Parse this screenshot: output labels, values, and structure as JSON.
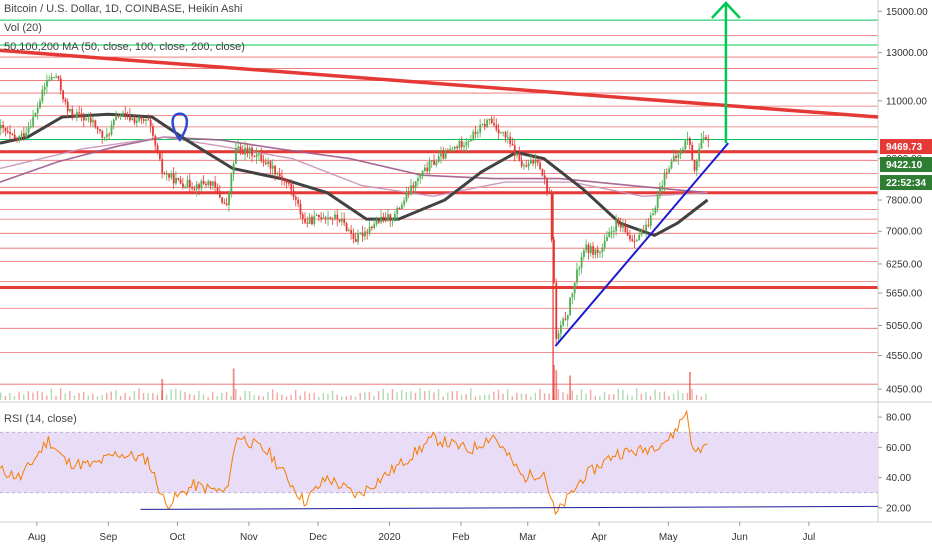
{
  "legend": {
    "title": "Bitcoin / U.S. Dollar, 1D, COINBASE, Heikin Ashi",
    "volume": "Vol (20)",
    "ma": "50,100,200 MA (50, close, 100, close, 200, close)",
    "rsi": "RSI (14, close)"
  },
  "colors": {
    "up": "#4caf50",
    "down": "#e53935",
    "resistance": "#e53935",
    "support_green": "#00c853",
    "trendline": "#1a1ad4",
    "ma50": "#424242",
    "ma200": "#a0588a",
    "rsi_line": "#f57c00",
    "rsi_band": "#e9dcf6",
    "price_badge": "#e53935",
    "last_badge": "#2e7d32",
    "timer_badge": "#2e7d32"
  },
  "chart_data": [
    {
      "type": "candlestick",
      "title": "Bitcoin / U.S. Dollar, 1D, COINBASE, Heikin Ashi",
      "x_ticks": [
        "Aug",
        "Sep",
        "Oct",
        "Nov",
        "Dec",
        "2020",
        "Feb",
        "Mar",
        "Apr",
        "May",
        "Jun",
        "Jul"
      ],
      "x_start": "2019-07-16",
      "x_end": "2020-07-31",
      "y_scale": "log",
      "y_ticks": [
        4050,
        4550,
        5050,
        5650,
        6250,
        7000,
        7800,
        9000,
        11000,
        13000,
        15000
      ],
      "y_tick_labels": [
        "4050.00",
        "4550.00",
        "5050.00",
        "5650.00",
        "6250.00",
        "7000.00",
        "7800.00",
        "9000.00",
        "11000.00",
        "13000.00",
        "15000.00"
      ],
      "ylim": [
        3900,
        15600
      ],
      "price_badges": {
        "current": "9469.73",
        "last": "9422.10",
        "countdown": "22:52:34"
      },
      "price_series": [
        {
          "d": "2019-07-16",
          "c": 10000
        },
        {
          "d": "2019-07-22",
          "c": 9600
        },
        {
          "d": "2019-07-26",
          "c": 9800
        },
        {
          "d": "2019-07-31",
          "c": 10500
        },
        {
          "d": "2019-08-05",
          "c": 11800
        },
        {
          "d": "2019-08-09",
          "c": 12000
        },
        {
          "d": "2019-08-14",
          "c": 10600
        },
        {
          "d": "2019-08-20",
          "c": 10400
        },
        {
          "d": "2019-08-25",
          "c": 10200
        },
        {
          "d": "2019-08-30",
          "c": 9600
        },
        {
          "d": "2019-09-05",
          "c": 10500
        },
        {
          "d": "2019-09-12",
          "c": 10300
        },
        {
          "d": "2019-09-18",
          "c": 10200
        },
        {
          "d": "2019-09-24",
          "c": 8600
        },
        {
          "d": "2019-10-01",
          "c": 8300
        },
        {
          "d": "2019-10-08",
          "c": 8200
        },
        {
          "d": "2019-10-15",
          "c": 8300
        },
        {
          "d": "2019-10-22",
          "c": 7600
        },
        {
          "d": "2019-10-26",
          "c": 9300
        },
        {
          "d": "2019-11-02",
          "c": 9200
        },
        {
          "d": "2019-11-10",
          "c": 8800
        },
        {
          "d": "2019-11-18",
          "c": 8200
        },
        {
          "d": "2019-11-25",
          "c": 7200
        },
        {
          "d": "2019-12-03",
          "c": 7400
        },
        {
          "d": "2019-12-10",
          "c": 7300
        },
        {
          "d": "2019-12-17",
          "c": 6800
        },
        {
          "d": "2019-12-25",
          "c": 7200
        },
        {
          "d": "2020-01-03",
          "c": 7400
        },
        {
          "d": "2020-01-10",
          "c": 8100
        },
        {
          "d": "2020-01-18",
          "c": 8800
        },
        {
          "d": "2020-01-26",
          "c": 9200
        },
        {
          "d": "2020-02-05",
          "c": 9700
        },
        {
          "d": "2020-02-13",
          "c": 10300
        },
        {
          "d": "2020-02-20",
          "c": 9700
        },
        {
          "d": "2020-02-28",
          "c": 8700
        },
        {
          "d": "2020-03-05",
          "c": 9000
        },
        {
          "d": "2020-03-10",
          "c": 7900
        },
        {
          "d": "2020-03-13",
          "c": 4800
        },
        {
          "d": "2020-03-18",
          "c": 5300
        },
        {
          "d": "2020-03-25",
          "c": 6600
        },
        {
          "d": "2020-04-01",
          "c": 6500
        },
        {
          "d": "2020-04-08",
          "c": 7200
        },
        {
          "d": "2020-04-15",
          "c": 6800
        },
        {
          "d": "2020-04-22",
          "c": 7100
        },
        {
          "d": "2020-04-30",
          "c": 8700
        },
        {
          "d": "2020-05-06",
          "c": 9200
        },
        {
          "d": "2020-05-09",
          "c": 9700
        },
        {
          "d": "2020-05-12",
          "c": 8700
        },
        {
          "d": "2020-05-15",
          "c": 9600
        },
        {
          "d": "2020-05-18",
          "c": 9500
        }
      ],
      "ma50": [
        {
          "d": "2019-07-16",
          "c": 9500
        },
        {
          "d": "2019-07-28",
          "c": 9700
        },
        {
          "d": "2019-08-12",
          "c": 10400
        },
        {
          "d": "2019-09-01",
          "c": 10500
        },
        {
          "d": "2019-09-20",
          "c": 10400
        },
        {
          "d": "2019-10-05",
          "c": 9600
        },
        {
          "d": "2019-10-25",
          "c": 8700
        },
        {
          "d": "2019-11-15",
          "c": 8400
        },
        {
          "d": "2019-12-05",
          "c": 8000
        },
        {
          "d": "2019-12-22",
          "c": 7300
        },
        {
          "d": "2020-01-05",
          "c": 7300
        },
        {
          "d": "2020-01-25",
          "c": 7800
        },
        {
          "d": "2020-02-10",
          "c": 8600
        },
        {
          "d": "2020-02-25",
          "c": 9200
        },
        {
          "d": "2020-03-08",
          "c": 9000
        },
        {
          "d": "2020-03-25",
          "c": 8100
        },
        {
          "d": "2020-04-10",
          "c": 7200
        },
        {
          "d": "2020-04-25",
          "c": 6900
        },
        {
          "d": "2020-05-05",
          "c": 7200
        },
        {
          "d": "2020-05-18",
          "c": 7800
        }
      ],
      "ma200": [
        {
          "d": "2019-07-16",
          "c": 8300
        },
        {
          "d": "2019-08-10",
          "c": 8900
        },
        {
          "d": "2019-09-05",
          "c": 9400
        },
        {
          "d": "2019-09-25",
          "c": 9700
        },
        {
          "d": "2019-10-20",
          "c": 9600
        },
        {
          "d": "2019-11-15",
          "c": 9300
        },
        {
          "d": "2019-12-15",
          "c": 9000
        },
        {
          "d": "2020-01-15",
          "c": 8500
        },
        {
          "d": "2020-02-15",
          "c": 8400
        },
        {
          "d": "2020-03-15",
          "c": 8400
        },
        {
          "d": "2020-04-15",
          "c": 8200
        },
        {
          "d": "2020-05-18",
          "c": 8000
        }
      ],
      "ma100": [
        {
          "d": "2019-07-16",
          "c": 8700
        },
        {
          "d": "2019-08-20",
          "c": 9300
        },
        {
          "d": "2019-09-25",
          "c": 9700
        },
        {
          "d": "2019-10-20",
          "c": 9400
        },
        {
          "d": "2019-11-20",
          "c": 9000
        },
        {
          "d": "2019-12-20",
          "c": 8200
        },
        {
          "d": "2020-01-20",
          "c": 7900
        },
        {
          "d": "2020-02-20",
          "c": 8300
        },
        {
          "d": "2020-03-20",
          "c": 8300
        },
        {
          "d": "2020-04-20",
          "c": 7900
        },
        {
          "d": "2020-05-18",
          "c": 8000
        }
      ],
      "horizontal_levels_thin_red": [
        4120,
        4600,
        5000,
        5360,
        5880,
        6300,
        6600,
        6950,
        7300,
        7550,
        8150,
        8550,
        8950,
        9250,
        10050,
        10450,
        10800,
        11300,
        11800,
        12300,
        12800,
        13800
      ],
      "horizontal_levels_thick_red": [
        5760,
        8000,
        9220
      ],
      "horizontal_levels_green": [
        9620,
        13350,
        14550
      ],
      "descending_resistance": [
        {
          "d": "2019-07-16",
          "c": 13100
        },
        {
          "d": "2020-07-31",
          "c": 10400
        }
      ],
      "ascending_trendline": [
        {
          "d": "2020-03-13",
          "c": 4700
        },
        {
          "d": "2020-05-27",
          "c": 9500
        }
      ],
      "arrow_target": {
        "d": "2020-05-26",
        "from": 9500,
        "to": 15600
      }
    },
    {
      "type": "bar",
      "title": "Vol (20)",
      "x_ticks": [
        "Aug",
        "Sep",
        "Oct",
        "Nov",
        "Dec",
        "2020",
        "Feb",
        "Mar",
        "Apr",
        "May",
        "Jun",
        "Jul"
      ],
      "spikes": [
        {
          "d": "2019-10-25",
          "v": 0.9
        },
        {
          "d": "2019-09-24",
          "v": 0.6
        },
        {
          "d": "2020-03-12",
          "v": 1.0
        },
        {
          "d": "2020-03-13",
          "v": 0.85
        },
        {
          "d": "2020-03-19",
          "v": 0.7
        },
        {
          "d": "2020-05-10",
          "v": 0.8
        }
      ]
    },
    {
      "type": "line",
      "title": "RSI (14, close)",
      "y_ticks": [
        20,
        40,
        60,
        80
      ],
      "y_tick_labels": [
        "20.00",
        "40.00",
        "60.00",
        "80.00"
      ],
      "ylim": [
        12,
        88
      ],
      "band": [
        30,
        70
      ],
      "values": [
        {
          "d": "2019-07-16",
          "v": 45
        },
        {
          "d": "2019-07-25",
          "v": 40
        },
        {
          "d": "2019-08-06",
          "v": 65
        },
        {
          "d": "2019-08-14",
          "v": 50
        },
        {
          "d": "2019-08-25",
          "v": 48
        },
        {
          "d": "2019-09-05",
          "v": 56
        },
        {
          "d": "2019-09-18",
          "v": 52
        },
        {
          "d": "2019-09-26",
          "v": 22
        },
        {
          "d": "2019-10-08",
          "v": 35
        },
        {
          "d": "2019-10-22",
          "v": 30
        },
        {
          "d": "2019-10-27",
          "v": 68
        },
        {
          "d": "2019-11-10",
          "v": 56
        },
        {
          "d": "2019-11-25",
          "v": 24
        },
        {
          "d": "2019-12-05",
          "v": 40
        },
        {
          "d": "2019-12-18",
          "v": 28
        },
        {
          "d": "2020-01-05",
          "v": 48
        },
        {
          "d": "2020-01-20",
          "v": 66
        },
        {
          "d": "2020-02-05",
          "v": 58
        },
        {
          "d": "2020-02-15",
          "v": 68
        },
        {
          "d": "2020-02-28",
          "v": 40
        },
        {
          "d": "2020-03-08",
          "v": 44
        },
        {
          "d": "2020-03-13",
          "v": 15
        },
        {
          "d": "2020-03-25",
          "v": 40
        },
        {
          "d": "2020-04-08",
          "v": 56
        },
        {
          "d": "2020-04-20",
          "v": 58
        },
        {
          "d": "2020-05-02",
          "v": 66
        },
        {
          "d": "2020-05-09",
          "v": 84
        },
        {
          "d": "2020-05-12",
          "v": 56
        },
        {
          "d": "2020-05-18",
          "v": 62
        }
      ],
      "trendline": [
        {
          "d": "2019-09-15",
          "v": 19
        },
        {
          "d": "2020-07-31",
          "v": 21
        }
      ]
    }
  ]
}
